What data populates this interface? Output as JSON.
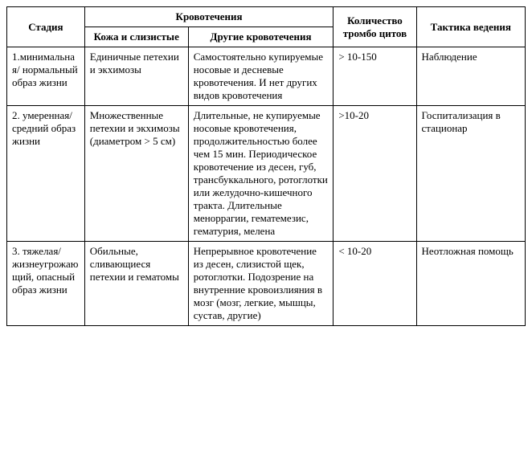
{
  "headers": {
    "stage": "Стадия",
    "bleeding_group": "Кровотечения",
    "skin": "Кожа и слизистые",
    "other": "Другие кровотечения",
    "count": "Количество тромбо цитов",
    "tactic": "Тактика ведения"
  },
  "rows": [
    {
      "stage": "1.минимальная/ нормальный образ жизни",
      "skin": "Единичные петехии и экхимозы",
      "other": "Самостоятельно купируемые носовые и десневые кровотечения. И нет других видов кровотечения",
      "count": "> 10-150",
      "tactic": "Наблюдение"
    },
    {
      "stage": "2. умеренная/ средний образ жизни",
      "skin": "Множественные петехии и экхимозы (диаметром > 5 см)",
      "other": "Длительные, не купируемые носовые кровотечения, продолжительностью более чем 15 мин. Периодическое кровотечение из десен, губ, трансбуккального, ротоглотки или желудочно-кишечного тракта.\nДлительные меноррагии, гематемезис, гематурия, мелена",
      "count": ">10-20",
      "tactic": "Госпитализация в стационар"
    },
    {
      "stage": "3. тяжелая/ жизнеугрожающий, опасный образ жизни",
      "skin": "Обильные, сливающиеся петехии и гематомы",
      "other": "Непрерывное кровотечение из десен, слизистой щек, ротоглотки.\nПодозрение на внутренние кровоизлияния в мозг (мозг, легкие, мышцы, сустав, другие)",
      "count": "< 10-20",
      "tactic": "Неотложная помощь"
    }
  ]
}
